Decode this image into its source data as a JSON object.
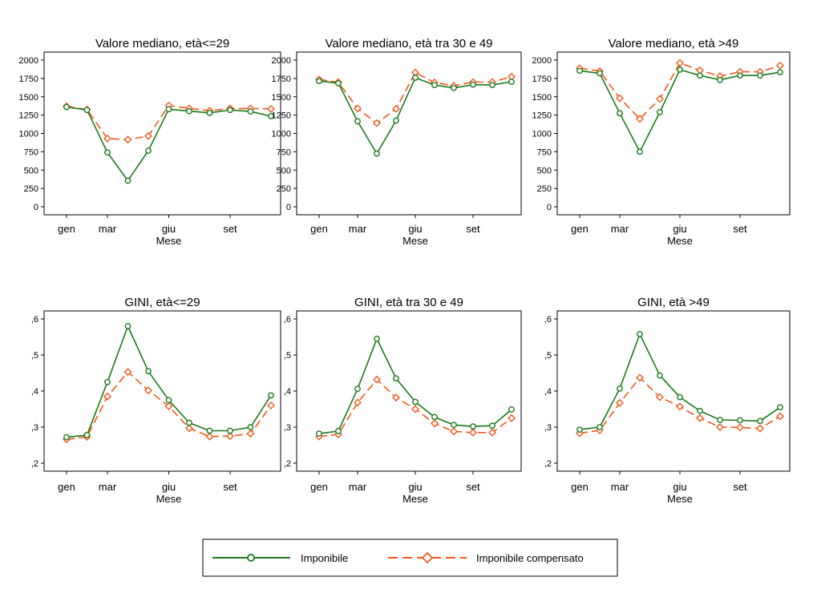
{
  "chart_data": [
    {
      "type": "line",
      "title": "Valore mediano, età<=29",
      "xlabel": "Mese",
      "x_ticks": [
        "gen",
        "mar",
        "giu",
        "set"
      ],
      "ylim": [
        0,
        2000
      ],
      "y_ticks": [
        "0",
        "250",
        "500",
        "750",
        "1000",
        "1250",
        "1500",
        "1750",
        "2000"
      ],
      "series": [
        {
          "name": "Imponibile",
          "values": [
            1360,
            1320,
            740,
            355,
            765,
            1330,
            1305,
            1280,
            1320,
            1300,
            1235
          ]
        },
        {
          "name": "Imponibile compensato",
          "values": [
            1370,
            1325,
            930,
            915,
            965,
            1380,
            1340,
            1310,
            1340,
            1340,
            1335
          ]
        }
      ]
    },
    {
      "type": "line",
      "title": "Valore mediano, età tra 30 e 49",
      "xlabel": "Mese",
      "x_ticks": [
        "gen",
        "mar",
        "giu",
        "set"
      ],
      "ylim": [
        0,
        2000
      ],
      "y_ticks": [
        "0",
        "250",
        "500",
        "750",
        "1000",
        "1250",
        "1500",
        "1750",
        "2000"
      ],
      "series": [
        {
          "name": "Imponibile",
          "values": [
            1715,
            1685,
            1165,
            725,
            1175,
            1760,
            1660,
            1620,
            1665,
            1660,
            1705
          ]
        },
        {
          "name": "Imponibile compensato",
          "values": [
            1735,
            1700,
            1340,
            1140,
            1335,
            1830,
            1695,
            1650,
            1700,
            1700,
            1775
          ]
        }
      ]
    },
    {
      "type": "line",
      "title": "Valore mediano, età >49",
      "xlabel": "Mese",
      "x_ticks": [
        "gen",
        "mar",
        "giu",
        "set"
      ],
      "ylim": [
        0,
        2000
      ],
      "y_ticks": [
        "0",
        "250",
        "500",
        "750",
        "1000",
        "1250",
        "1500",
        "1750",
        "2000"
      ],
      "series": [
        {
          "name": "Imponibile",
          "values": [
            1855,
            1820,
            1275,
            750,
            1290,
            1870,
            1790,
            1730,
            1790,
            1790,
            1835
          ]
        },
        {
          "name": "Imponibile compensato",
          "values": [
            1890,
            1850,
            1480,
            1200,
            1470,
            1960,
            1860,
            1780,
            1840,
            1840,
            1925
          ]
        }
      ]
    },
    {
      "type": "line",
      "title": "GINI, età<=29",
      "xlabel": "Mese",
      "x_ticks": [
        "gen",
        "mar",
        "giu",
        "set"
      ],
      "ylim": [
        0.2,
        0.6
      ],
      "y_ticks": [
        ",2",
        ",3",
        ",4",
        ",5",
        ",6"
      ],
      "series": [
        {
          "name": "Imponibile",
          "values": [
            0.272,
            0.278,
            0.425,
            0.58,
            0.455,
            0.375,
            0.312,
            0.29,
            0.29,
            0.3,
            0.388
          ]
        },
        {
          "name": "Imponibile compensato",
          "values": [
            0.266,
            0.273,
            0.385,
            0.453,
            0.402,
            0.358,
            0.297,
            0.274,
            0.275,
            0.282,
            0.36
          ]
        }
      ]
    },
    {
      "type": "line",
      "title": "GINI, età tra 30 e 49",
      "xlabel": "Mese",
      "x_ticks": [
        "gen",
        "mar",
        "giu",
        "set"
      ],
      "ylim": [
        0.2,
        0.6
      ],
      "y_ticks": [
        ",2",
        ",3",
        ",4",
        ",5",
        ",6"
      ],
      "series": [
        {
          "name": "Imponibile",
          "values": [
            0.282,
            0.289,
            0.406,
            0.545,
            0.435,
            0.37,
            0.328,
            0.306,
            0.302,
            0.304,
            0.349
          ]
        },
        {
          "name": "Imponibile compensato",
          "values": [
            0.274,
            0.28,
            0.368,
            0.432,
            0.382,
            0.35,
            0.31,
            0.288,
            0.285,
            0.285,
            0.325
          ]
        }
      ]
    },
    {
      "type": "line",
      "title": "GINI, età >49",
      "xlabel": "Mese",
      "x_ticks": [
        "gen",
        "mar",
        "giu",
        "set"
      ],
      "ylim": [
        0.2,
        0.6
      ],
      "y_ticks": [
        ",2",
        ",3",
        ",4",
        ",5",
        ",6"
      ],
      "series": [
        {
          "name": "Imponibile",
          "values": [
            0.293,
            0.3,
            0.407,
            0.558,
            0.443,
            0.383,
            0.345,
            0.32,
            0.319,
            0.317,
            0.355
          ]
        },
        {
          "name": "Imponibile compensato",
          "values": [
            0.283,
            0.291,
            0.367,
            0.437,
            0.383,
            0.357,
            0.325,
            0.3,
            0.299,
            0.296,
            0.33
          ]
        }
      ]
    }
  ],
  "legend": {
    "placement": "bottom",
    "items": [
      {
        "label": "Imponibile",
        "color": "#1a7a1a",
        "marker": "circle",
        "dash": "solid"
      },
      {
        "label": "Imponibile compensato",
        "color": "#f4581c",
        "marker": "diamond",
        "dash": "dashed"
      }
    ]
  },
  "colors": {
    "series_1": "#1a7a1a",
    "series_2": "#f4581c"
  }
}
